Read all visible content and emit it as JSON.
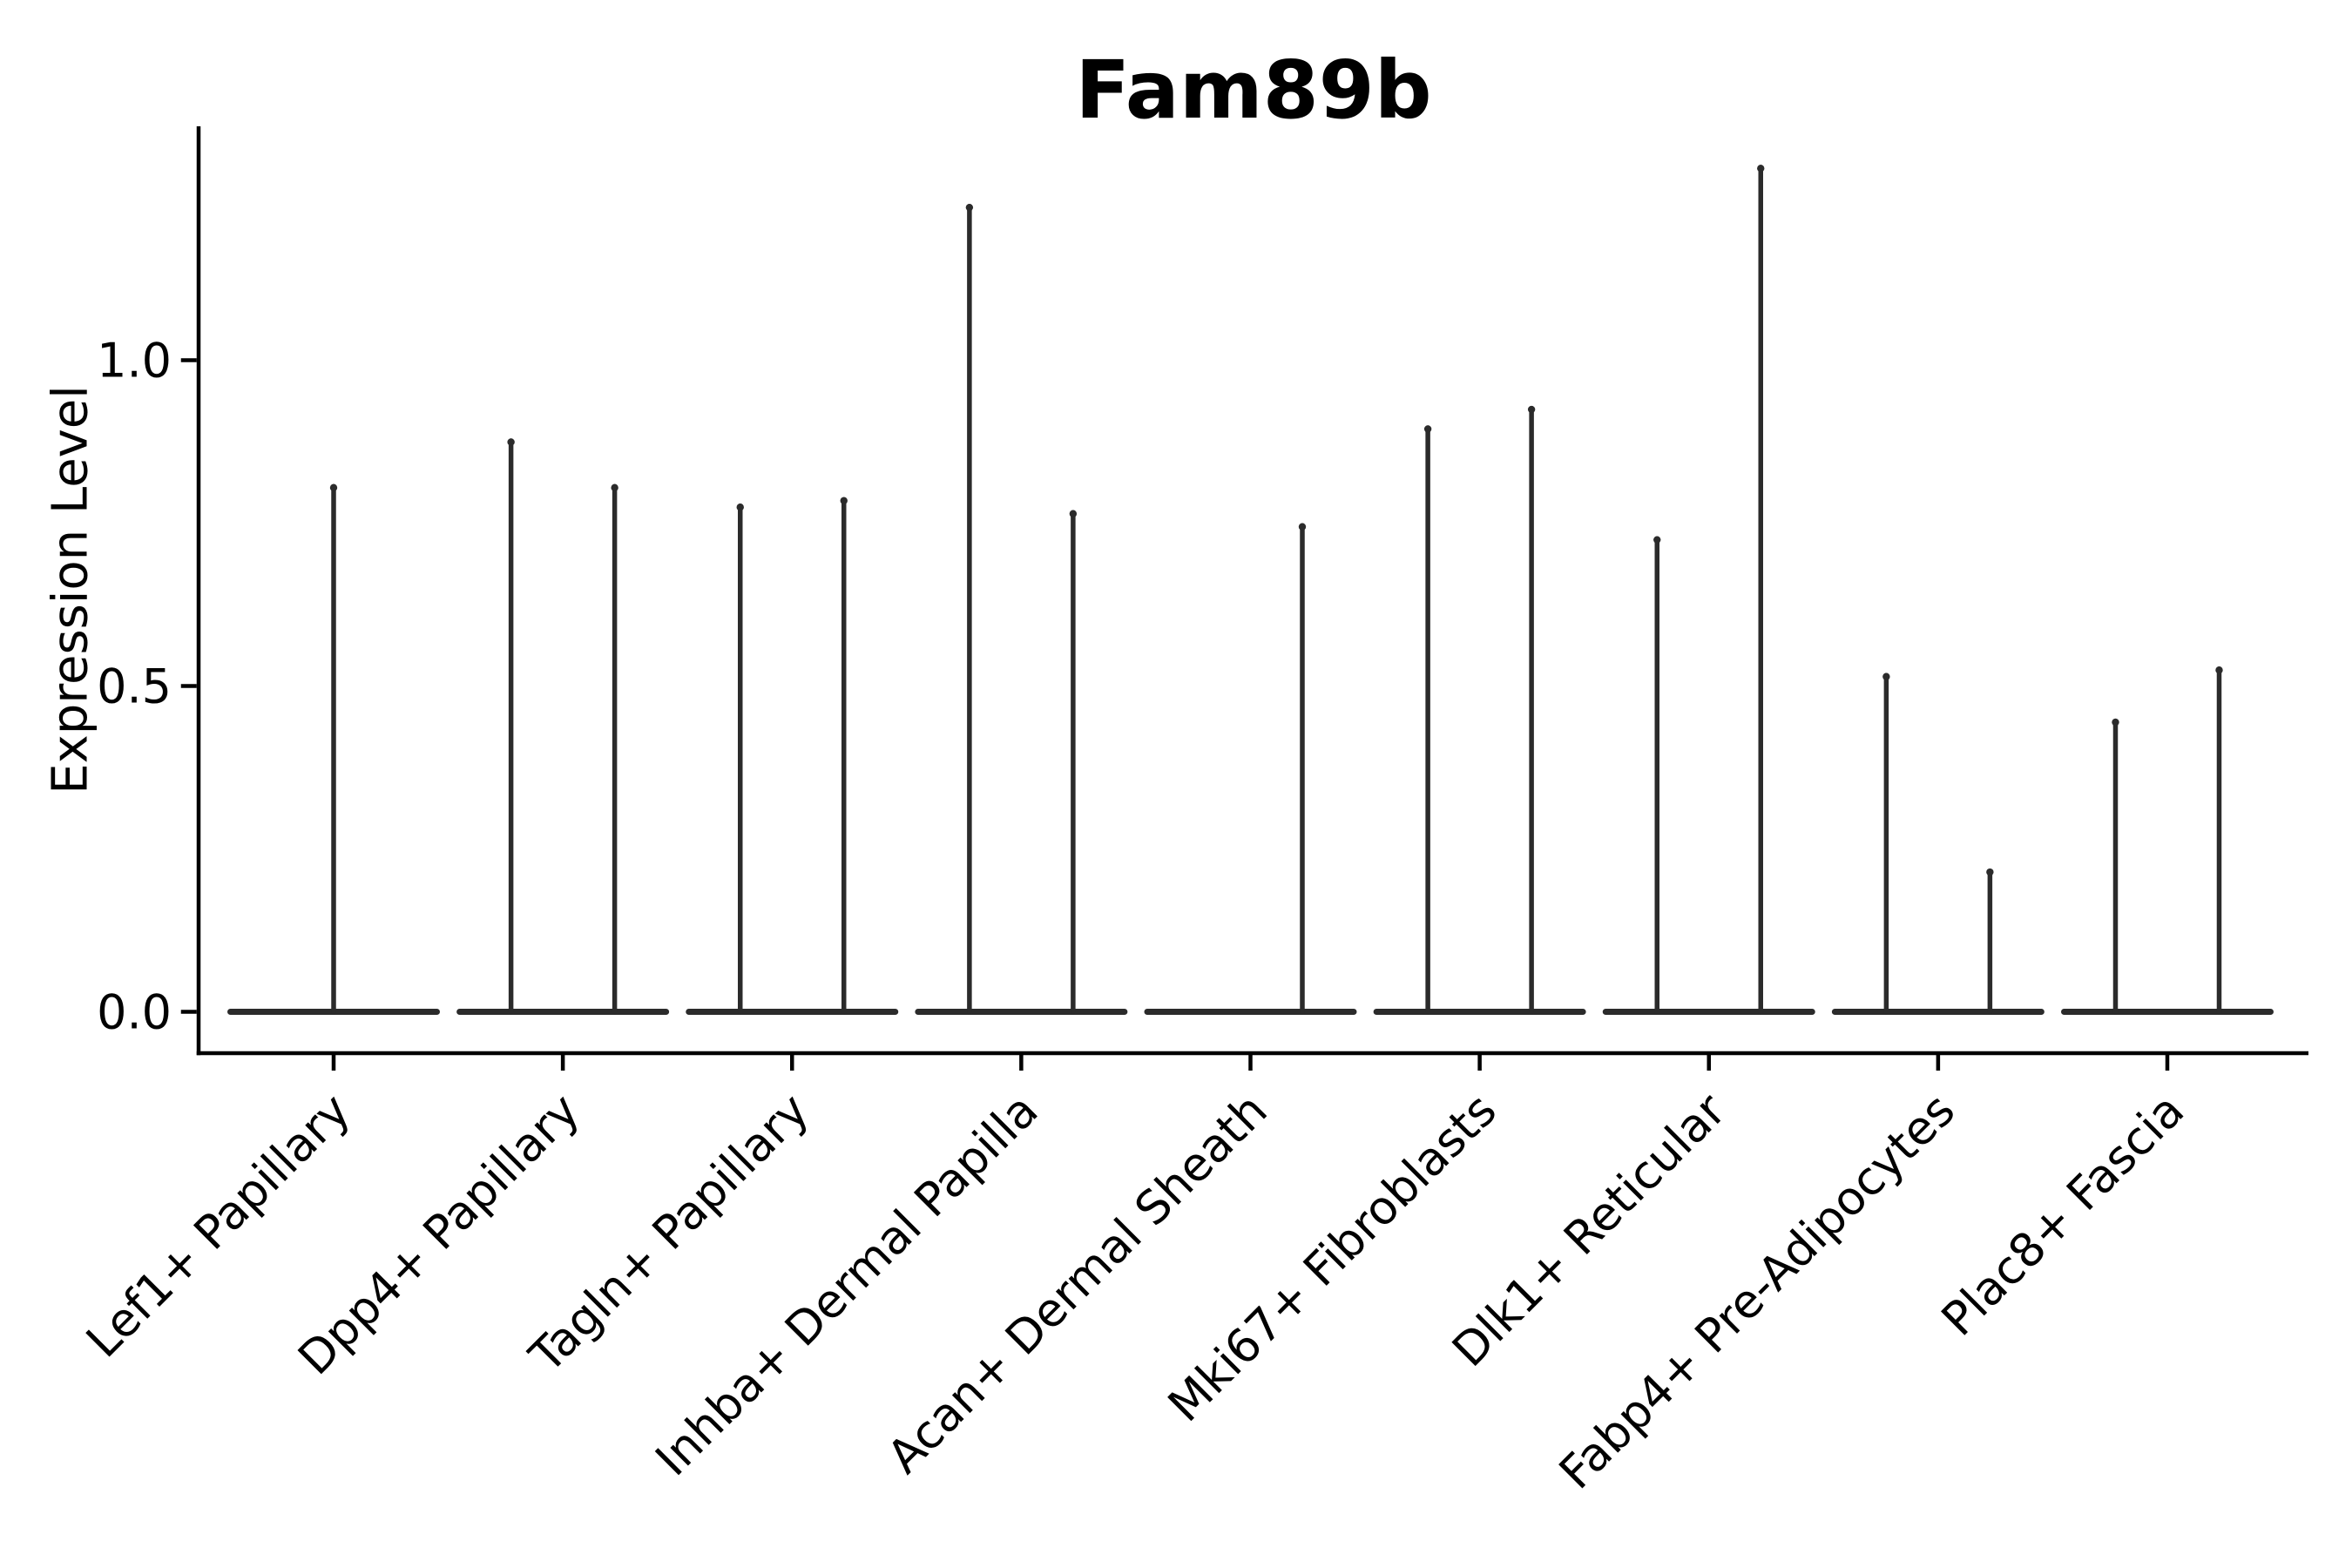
{
  "chart_data": {
    "type": "violin",
    "title": "Fam89b",
    "ylabel": "Expression Level",
    "xlabel": "",
    "yticks": [
      {
        "label": "0.0",
        "value": 0.0
      },
      {
        "label": "0.5",
        "value": 0.5
      },
      {
        "label": "1.0",
        "value": 1.0
      }
    ],
    "ylim": [
      -0.06,
      1.36
    ],
    "grid": false,
    "legend_position": "none",
    "description": "Single-cell expression violin plot; every cluster is dominated by zero values giving a flat lens-shaped violin body at 0 with thin spikes reaching each violin's maximum expression",
    "categories": [
      "Lef1+ Papillary",
      "Dpp4+ Papillary",
      "Tagln+ Papillary",
      "Inhba+ Dermal Papilla",
      "Acan+ Dermal Sheath",
      "Mki67+ Fibroblasts",
      "Dlk1+ Reticular",
      "Fabp4+ Pre-Adipocytes",
      "Plac8+ Fascia"
    ],
    "groups": [
      {
        "label": "Lef1+ Papillary",
        "violins": [
          {
            "position": "center",
            "max": 0.81
          }
        ]
      },
      {
        "label": "Dpp4+ Papillary",
        "violins": [
          {
            "position": "left",
            "max": 0.88
          },
          {
            "position": "right",
            "max": 0.81
          }
        ]
      },
      {
        "label": "Tagln+ Papillary",
        "violins": [
          {
            "position": "left",
            "max": 0.78
          },
          {
            "position": "right",
            "max": 0.79
          }
        ]
      },
      {
        "label": "Inhba+ Dermal Papilla",
        "violins": [
          {
            "position": "left",
            "max": 1.24
          },
          {
            "position": "right",
            "max": 0.77
          }
        ]
      },
      {
        "label": "Acan+ Dermal Sheath",
        "violins": [
          {
            "position": "left",
            "max": 0.0
          },
          {
            "position": "right",
            "max": 0.75
          }
        ]
      },
      {
        "label": "Mki67+ Fibroblasts",
        "violins": [
          {
            "position": "left",
            "max": 0.9
          },
          {
            "position": "right",
            "max": 0.93
          }
        ]
      },
      {
        "label": "Dlk1+ Reticular",
        "violins": [
          {
            "position": "left",
            "max": 0.73
          },
          {
            "position": "right",
            "max": 1.3
          }
        ]
      },
      {
        "label": "Fabp4+ Pre-Adipocytes",
        "violins": [
          {
            "position": "left",
            "max": 0.52
          },
          {
            "position": "right",
            "max": 0.22
          }
        ]
      },
      {
        "label": "Plac8+ Fascia",
        "violins": [
          {
            "position": "left",
            "max": 0.45
          },
          {
            "position": "right",
            "max": 0.53
          }
        ]
      }
    ],
    "colors": {
      "violin": "#2b2b2b",
      "axis": "#000000",
      "text": "#000000",
      "background": "#ffffff"
    }
  }
}
